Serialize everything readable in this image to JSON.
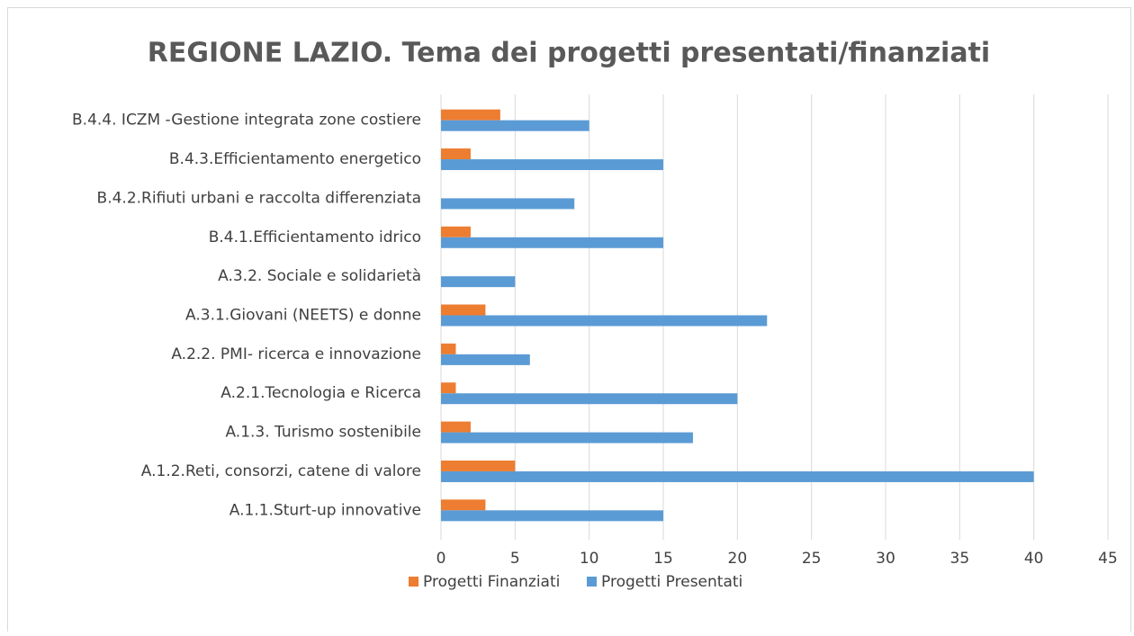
{
  "chart_data": {
    "type": "barh",
    "title": "REGIONE LAZIO. Tema dei progetti presentati/finanziati",
    "categories": [
      "B.4.4. ICZM -Gestione integrata zone costiere",
      "B.4.3.Efficientamento energetico",
      "B.4.2.Rifiuti urbani e raccolta differenziata",
      "B.4.1.Efficientamento idrico",
      "A.3.2. Sociale e solidarietà",
      "A.3.1.Giovani (NEETS) e donne",
      "A.2.2. PMI- ricerca e innovazione",
      "A.2.1.Tecnologia e Ricerca",
      "A.1.3. Turismo sostenibile",
      "A.1.2.Reti, consorzi, catene di valore",
      "A.1.1.Sturt-up innovative"
    ],
    "series": [
      {
        "name": "Progetti Finanziati",
        "color": "#ed7d31",
        "values": [
          4,
          2,
          0,
          2,
          0,
          3,
          1,
          1,
          2,
          5,
          3
        ]
      },
      {
        "name": "Progetti Presentati",
        "color": "#5b9bd5",
        "values": [
          10,
          15,
          9,
          15,
          5,
          22,
          6,
          20,
          17,
          40,
          15
        ]
      }
    ],
    "xlim": [
      0,
      45
    ],
    "xticks": [
      0,
      5,
      10,
      15,
      20,
      25,
      30,
      35,
      40,
      45
    ],
    "grid": true,
    "legend": "bottom"
  }
}
